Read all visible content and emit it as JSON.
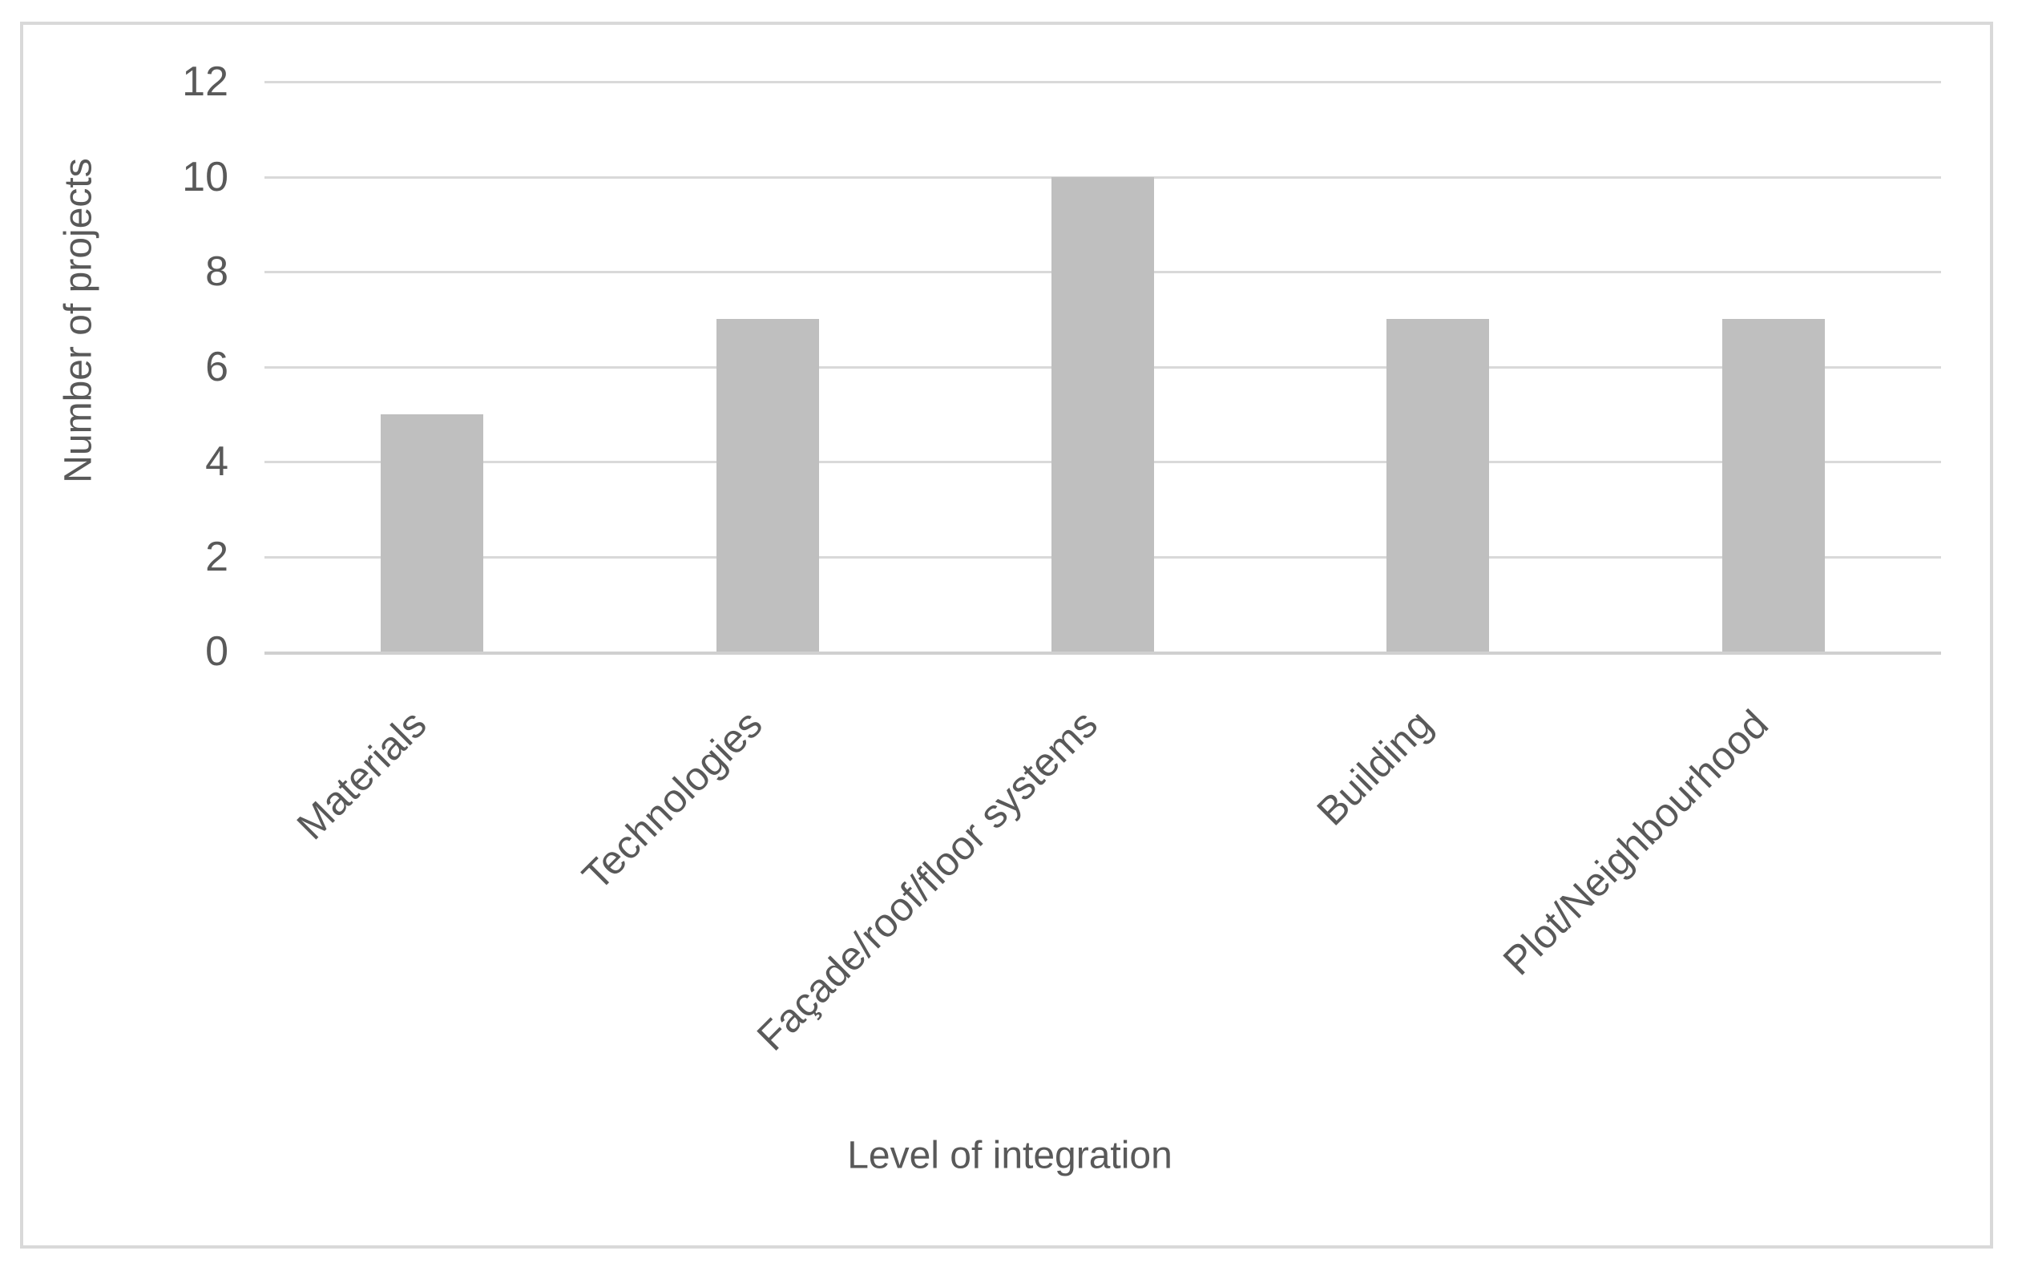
{
  "chart_data": {
    "type": "bar",
    "title": "",
    "categories": [
      "Materials",
      "Technologies",
      "Façade/roof/floor systems",
      "Building",
      "Plot/Neighbourhood"
    ],
    "values": [
      5,
      7,
      10,
      7,
      7
    ],
    "xlabel": "Level of integration",
    "ylabel": "Number of projects",
    "ylim": [
      0,
      12
    ],
    "yticks": [
      0,
      2,
      4,
      6,
      8,
      10,
      12
    ],
    "grid": "horizontal",
    "legend_position": "none",
    "bar_color": "#bfbfbf",
    "gridline_color": "#d9d9d9",
    "axis_line_color": "#d0d0d0",
    "text_color": "#595959",
    "border_color": "#d9d9d9"
  }
}
